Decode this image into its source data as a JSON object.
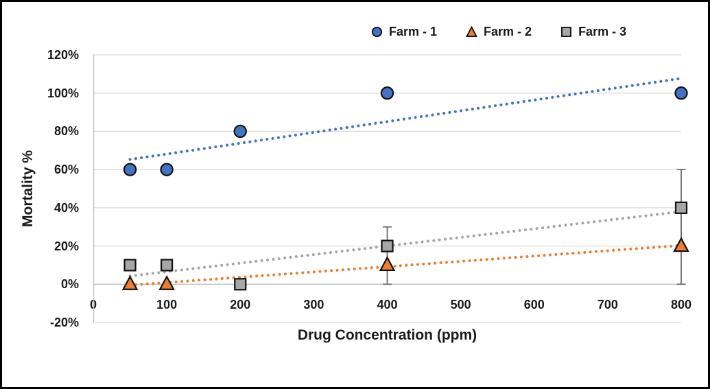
{
  "chart_data": {
    "type": "scatter",
    "title": "",
    "xlabel": "Drug Concentration (ppm)",
    "ylabel": "Mortality %",
    "xlim": [
      0,
      800
    ],
    "ylim": [
      -20,
      120
    ],
    "x_ticks": [
      0,
      100,
      200,
      300,
      400,
      500,
      600,
      700,
      800
    ],
    "y_ticks": [
      120,
      100,
      80,
      60,
      40,
      20,
      0,
      -20
    ],
    "y_tick_suffix": "%",
    "grid": "horizontal-only",
    "legend_position": "top",
    "gridline_color": "#D9D9D9",
    "axis_line_color": "#BFBFBF",
    "zero_line_color": "#BFBFBF",
    "error_bar_color": "#6E6E6E",
    "marker_outline_color": "#111111",
    "series": [
      {
        "name": "Farm - 1",
        "marker": "circle",
        "color": "#4472C4",
        "points": [
          {
            "x": 50,
            "y": 60
          },
          {
            "x": 100,
            "y": 60
          },
          {
            "x": 200,
            "y": 80
          },
          {
            "x": 400,
            "y": 100
          },
          {
            "x": 800,
            "y": 100
          }
        ],
        "trendline": {
          "style": "dotted",
          "x1": 50,
          "y1": 65.3,
          "x2": 800,
          "y2": 107.7
        }
      },
      {
        "name": "Farm - 2",
        "marker": "triangle",
        "color": "#ED7D31",
        "points": [
          {
            "x": 50,
            "y": 0
          },
          {
            "x": 100,
            "y": 0
          },
          {
            "x": 400,
            "y": 10,
            "err": 10
          },
          {
            "x": 800,
            "y": 20,
            "err": 20
          }
        ],
        "trendline": {
          "style": "dotted",
          "x1": 50,
          "y1": -0.5,
          "x2": 800,
          "y2": 20.3
        }
      },
      {
        "name": "Farm - 3",
        "marker": "square",
        "color": "#A6A6A6",
        "points": [
          {
            "x": 50,
            "y": 10
          },
          {
            "x": 100,
            "y": 10
          },
          {
            "x": 200,
            "y": 0
          },
          {
            "x": 400,
            "y": 20,
            "err": 10
          },
          {
            "x": 800,
            "y": 40,
            "err": 20
          }
        ],
        "trendline": {
          "style": "dotted",
          "x1": 50,
          "y1": 4.3,
          "x2": 800,
          "y2": 38.0
        }
      }
    ]
  }
}
